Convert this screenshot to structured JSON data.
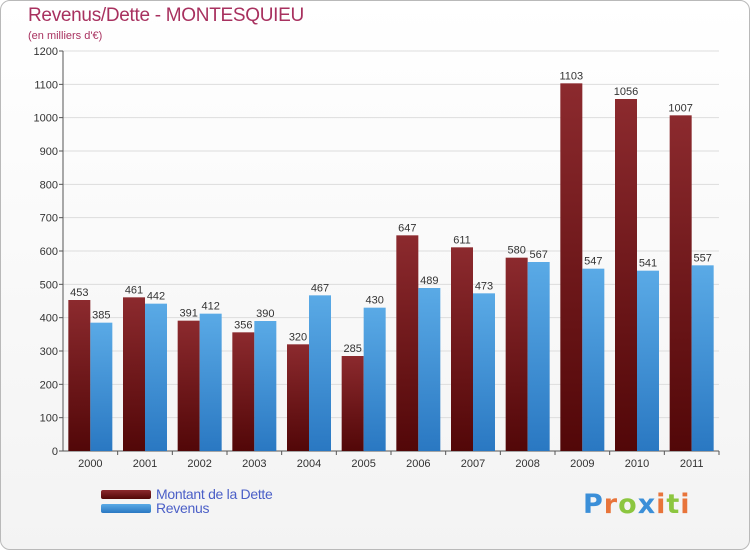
{
  "title": "Revenus/Dette - MONTESQUIEU",
  "subtitle": "(en milliers d'€)",
  "colors": {
    "dette": "#7a1c20",
    "revenus": "#3f97da",
    "title": "#a8315f",
    "legend_text": "#4b5fc7",
    "grid": "#dddddd"
  },
  "logo": {
    "text": "Proxiti",
    "letters": [
      "P",
      "r",
      "o",
      "x",
      "i",
      "t",
      "i"
    ],
    "colors": [
      "#3b8fd8",
      "#e8743a",
      "#8cc63f",
      "#3b8fd8",
      "#e8743a",
      "#8cc63f",
      "#e8743a"
    ]
  },
  "chart_data": {
    "type": "bar",
    "categories": [
      "2000",
      "2001",
      "2002",
      "2003",
      "2004",
      "2005",
      "2006",
      "2007",
      "2008",
      "2009",
      "2010",
      "2011"
    ],
    "series": [
      {
        "name": "Montant de la Dette",
        "values": [
          453,
          461,
          391,
          356,
          320,
          285,
          647,
          611,
          580,
          1103,
          1056,
          1007
        ]
      },
      {
        "name": "Revenus",
        "values": [
          385,
          442,
          412,
          390,
          467,
          430,
          489,
          473,
          567,
          547,
          541,
          557
        ]
      }
    ],
    "ylim": [
      0,
      1200
    ],
    "yticks": [
      0,
      100,
      200,
      300,
      400,
      500,
      600,
      700,
      800,
      900,
      1000,
      1100,
      1200
    ],
    "grid": true,
    "legend_position": "bottom-left"
  }
}
